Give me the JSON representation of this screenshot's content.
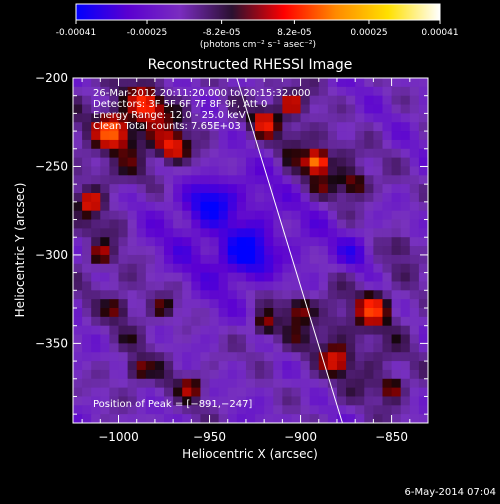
{
  "colorbar": {
    "tick_labels": [
      "-0.00041",
      "-0.00025",
      "-8.2e-05",
      "8.2e-05",
      "0.00025",
      "0.00041"
    ],
    "tick_values": [
      -0.00041,
      -0.00025,
      -8.2e-05,
      8.2e-05,
      0.00025,
      0.00041
    ],
    "range": [
      -0.00041,
      0.00041
    ],
    "units_label": "(photons cm⁻² s⁻¹ asec⁻²)",
    "colors": [
      "#0000ff",
      "#5a00d0",
      "#7a2cc0",
      "#2a1030",
      "#ff0000",
      "#ff8a00",
      "#ffe000",
      "#ffffff"
    ]
  },
  "chart_data": {
    "type": "heatmap",
    "title": "Reconstructed RHESSI Image",
    "xlabel": "Heliocentric X (arcsec)",
    "ylabel": "Heliocentric Y (arcsec)",
    "xlim": [
      -1025,
      -830
    ],
    "ylim": [
      -395,
      -200
    ],
    "x_ticks": [
      -1000,
      -950,
      -900,
      -850
    ],
    "x_tick_labels": [
      "−1000",
      "−950",
      "−900",
      "−850"
    ],
    "y_ticks": [
      -200,
      -250,
      -300,
      -350
    ],
    "y_tick_labels": [
      "−200",
      "−250",
      "−300",
      "−350"
    ],
    "peak": [
      -891,
      -247
    ],
    "limb_line": [
      [
        -935,
        -200
      ],
      [
        -877,
        -395
      ]
    ],
    "annotations": [
      "26-Mar-2012 20:11:20.000 to 20:15:32.000",
      "Detectors: 3F 5F 6F 7F 8F 9F, Att 0",
      "Energy Range: 12.0 - 25.0 keV",
      "Clean     Total counts: 7.65E+03"
    ],
    "peak_label": "Position of Peak = [−891,−247]",
    "blobs": [
      {
        "x": -891,
        "y": -247,
        "amp": 1.0,
        "sigma": 9
      },
      {
        "x": -1003,
        "y": -230,
        "amp": 0.8,
        "sigma": 14
      },
      {
        "x": -970,
        "y": -240,
        "amp": 0.75,
        "sigma": 12
      },
      {
        "x": -985,
        "y": -215,
        "amp": 0.6,
        "sigma": 12
      },
      {
        "x": -1015,
        "y": -270,
        "amp": 0.65,
        "sigma": 10
      },
      {
        "x": -1010,
        "y": -300,
        "amp": 0.5,
        "sigma": 10
      },
      {
        "x": -1000,
        "y": -330,
        "amp": 0.45,
        "sigma": 10
      },
      {
        "x": -920,
        "y": -225,
        "amp": 0.55,
        "sigma": 11
      },
      {
        "x": -905,
        "y": -215,
        "amp": 0.6,
        "sigma": 9
      },
      {
        "x": -870,
        "y": -260,
        "amp": 0.55,
        "sigma": 11
      },
      {
        "x": -860,
        "y": -330,
        "amp": 0.7,
        "sigma": 14
      },
      {
        "x": -880,
        "y": -360,
        "amp": 0.6,
        "sigma": 12
      },
      {
        "x": -900,
        "y": -330,
        "amp": 0.55,
        "sigma": 12
      },
      {
        "x": -920,
        "y": -340,
        "amp": 0.5,
        "sigma": 10
      },
      {
        "x": -850,
        "y": -375,
        "amp": 0.55,
        "sigma": 10
      },
      {
        "x": -960,
        "y": -375,
        "amp": 0.45,
        "sigma": 10
      },
      {
        "x": -990,
        "y": -365,
        "amp": 0.5,
        "sigma": 10
      },
      {
        "x": -975,
        "y": -330,
        "amp": 0.4,
        "sigma": 9
      },
      {
        "x": -845,
        "y": -295,
        "amp": 0.4,
        "sigma": 9
      },
      {
        "x": -930,
        "y": -300,
        "amp": -0.6,
        "sigma": 20
      },
      {
        "x": -950,
        "y": -270,
        "amp": -0.5,
        "sigma": 18
      },
      {
        "x": -870,
        "y": -300,
        "amp": -0.35,
        "sigma": 14
      }
    ]
  },
  "footer": {
    "timestamp": "6-May-2014 07:04"
  }
}
